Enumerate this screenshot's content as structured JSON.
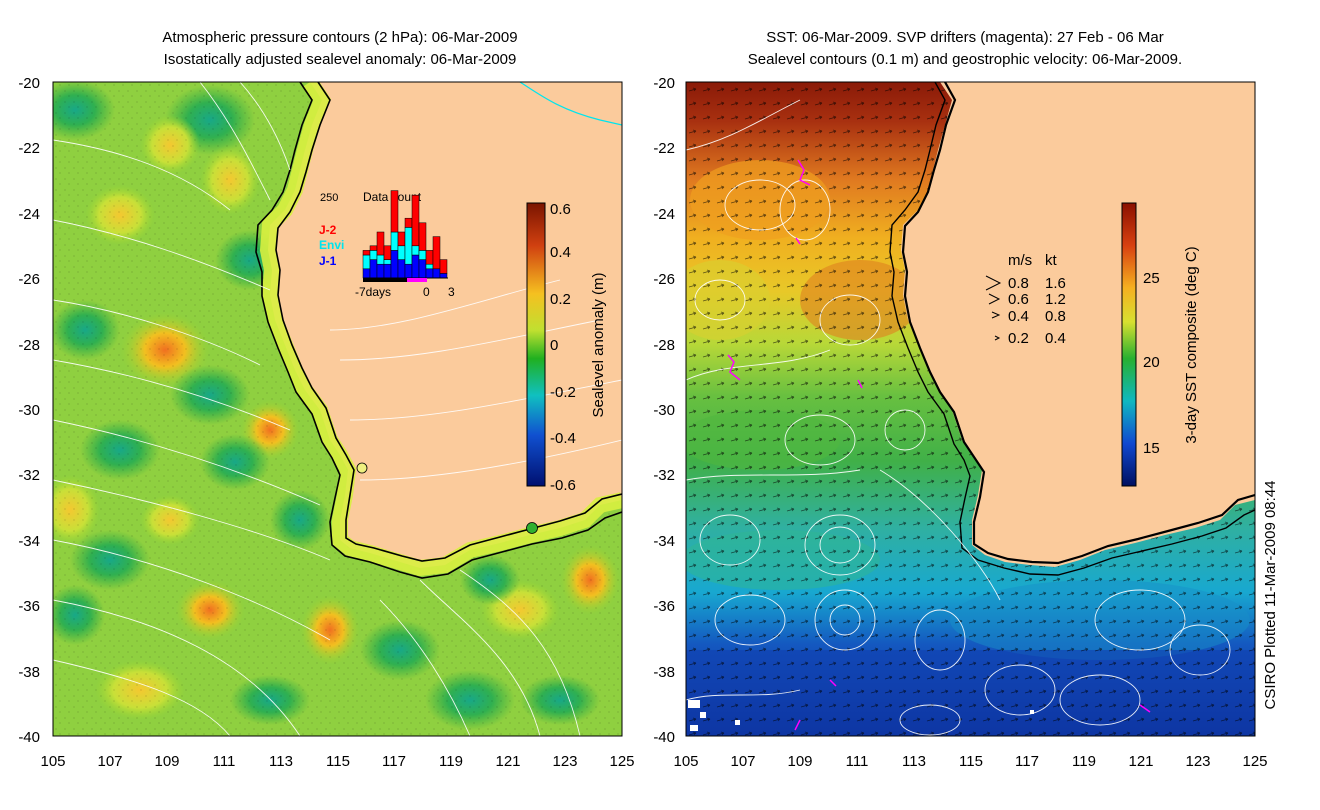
{
  "left_panel": {
    "title_line1": "Atmospheric pressure contours (2 hPa): 06-Mar-2009",
    "title_line2": "Isostatically adjusted sealevel anomaly: 06-Mar-2009",
    "x_ticks": [
      "105",
      "107",
      "109",
      "111",
      "113",
      "115",
      "117",
      "119",
      "121",
      "123",
      "125"
    ],
    "y_ticks": [
      "-20",
      "-22",
      "-24",
      "-26",
      "-28",
      "-30",
      "-32",
      "-34",
      "-36",
      "-38",
      "-40"
    ],
    "colorbar": {
      "label": "Sealevel anomaly (m)",
      "ticks": [
        "0.6",
        "0.4",
        "0.2",
        "0",
        "-0.2",
        "-0.4",
        "-0.6"
      ]
    },
    "inset": {
      "count_label": "250",
      "title": "Data count",
      "legend": [
        {
          "label": "J-2",
          "color": "#ff0000"
        },
        {
          "label": "Envi",
          "color": "#00ffff"
        },
        {
          "label": "J-1",
          "color": "#0000ff"
        }
      ],
      "x_labels": [
        "-7days",
        "0",
        "3"
      ],
      "bars": [
        {
          "j1": 0.1,
          "envi": 0.15,
          "j2": 0.05
        },
        {
          "j1": 0.2,
          "envi": 0.1,
          "j2": 0.05
        },
        {
          "j1": 0.15,
          "envi": 0.1,
          "j2": 0.25
        },
        {
          "j1": 0.15,
          "envi": 0.05,
          "j2": 0.15
        },
        {
          "j1": 0.3,
          "envi": 0.2,
          "j2": 0.45
        },
        {
          "j1": 0.2,
          "envi": 0.15,
          "j2": 0.15
        },
        {
          "j1": 0.15,
          "envi": 0.4,
          "j2": 0.1
        },
        {
          "j1": 0.25,
          "envi": 0.1,
          "j2": 0.55
        },
        {
          "j1": 0.2,
          "envi": 0.1,
          "j2": 0.3
        },
        {
          "j1": 0.1,
          "envi": 0.05,
          "j2": 0.15
        },
        {
          "j1": 0.1,
          "envi": 0.0,
          "j2": 0.35
        },
        {
          "j1": 0.05,
          "envi": 0.0,
          "j2": 0.15
        }
      ]
    }
  },
  "right_panel": {
    "title_line1": "SST: 06-Mar-2009. SVP drifters (magenta): 27 Feb - 06 Mar",
    "title_line2": "Sealevel contours (0.1 m) and geostrophic velocity: 06-Mar-2009.",
    "x_ticks": [
      "105",
      "107",
      "109",
      "111",
      "113",
      "115",
      "117",
      "119",
      "121",
      "123",
      "125"
    ],
    "y_ticks": [
      "-20",
      "-22",
      "-24",
      "-26",
      "-28",
      "-30",
      "-32",
      "-34",
      "-36",
      "-38",
      "-40"
    ],
    "colorbar": {
      "label": "3-day SST composite (deg C)",
      "ticks": [
        "25",
        "20",
        "15"
      ]
    },
    "velocity_legend": {
      "header_ms": "m/s",
      "header_kt": "kt",
      "rows": [
        {
          "ms": "0.8",
          "kt": "1.6"
        },
        {
          "ms": "0.6",
          "kt": "1.2"
        },
        {
          "ms": "0.4",
          "kt": "0.8"
        },
        {
          "ms": "0.2",
          "kt": "0.4"
        }
      ]
    }
  },
  "footer_text": "CSIRO Plotted 11-Mar-2009 08:44",
  "colors": {
    "land": "#fbcb9c",
    "ocean_green": "#4cb848",
    "anomaly_high": "#8b1a00",
    "anomaly_low": "#00137a",
    "drifter": "#ff00ff",
    "coast": "#000000",
    "contour": "#ffffff",
    "cyan_contour": "#00e5ee"
  }
}
